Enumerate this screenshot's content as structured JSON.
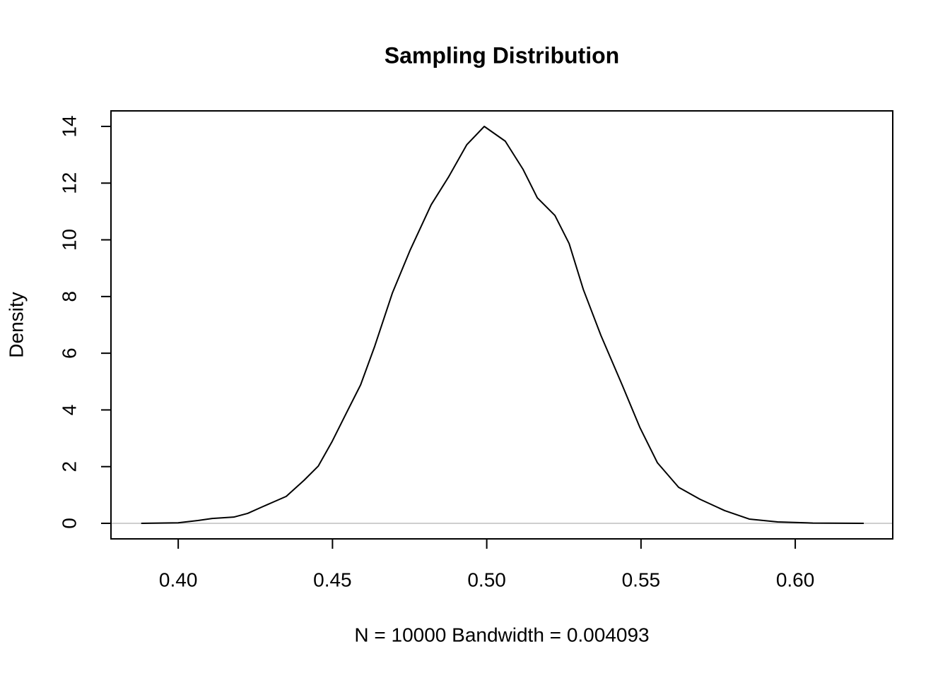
{
  "chart_data": {
    "type": "line",
    "title": "Sampling Distribution",
    "xlabel": "N = 10000   Bandwidth = 0.004093",
    "ylabel": "Density",
    "x": [
      0.388,
      0.4,
      0.4064,
      0.411,
      0.418,
      0.4225,
      0.427,
      0.435,
      0.4408,
      0.4454,
      0.4499,
      0.4545,
      0.4591,
      0.4637,
      0.4694,
      0.4751,
      0.482,
      0.4877,
      0.4935,
      0.4992,
      0.506,
      0.5118,
      0.5164,
      0.5221,
      0.5267,
      0.5313,
      0.537,
      0.5439,
      0.5496,
      0.5553,
      0.5622,
      0.5691,
      0.5771,
      0.5851,
      0.5943,
      0.6057,
      0.6222
    ],
    "series": [
      {
        "name": "Density",
        "color": "#000000",
        "values": [
          0,
          0.02,
          0.1,
          0.17,
          0.22,
          0.35,
          0.57,
          0.95,
          1.52,
          2.02,
          2.89,
          3.89,
          4.88,
          6.25,
          8.12,
          9.62,
          11.24,
          12.23,
          13.35,
          14.0,
          13.48,
          12.48,
          11.48,
          10.86,
          9.87,
          8.25,
          6.63,
          4.88,
          3.39,
          2.14,
          1.27,
          0.85,
          0.45,
          0.15,
          0.05,
          0.01,
          0
        ]
      }
    ],
    "xlim": [
      0.3782,
      0.6316
    ],
    "ylim": [
      -0.548,
      14.548
    ],
    "xticks": [
      {
        "value": 0.4,
        "label": "0.40"
      },
      0.45,
      {
        "value": 0.5,
        "label": "0.50"
      },
      0.55,
      {
        "value": 0.6,
        "label": "0.60"
      }
    ],
    "yticks": [
      0,
      2,
      4,
      6,
      8,
      10,
      12,
      14
    ]
  }
}
